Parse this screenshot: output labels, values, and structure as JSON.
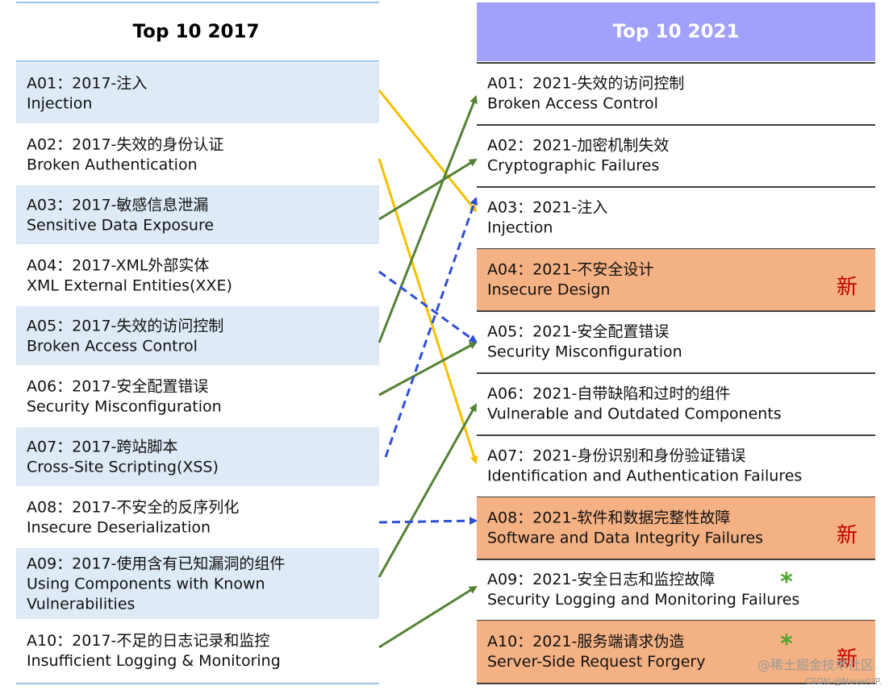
{
  "left": {
    "title": "Top 10 2017",
    "items": [
      {
        "lines": [
          "A01：2017-注入",
          "Injection"
        ]
      },
      {
        "lines": [
          "A02：2017-失效的身份认证",
          "Broken Authentication"
        ]
      },
      {
        "lines": [
          "A03：2017-敏感信息泄漏",
          "Sensitive Data Exposure"
        ]
      },
      {
        "lines": [
          "A04：2017-XML外部实体",
          "XML External Entities(XXE)"
        ]
      },
      {
        "lines": [
          "A05：2017-失效的访问控制",
          "Broken Access Control"
        ]
      },
      {
        "lines": [
          "A06：2017-安全配置错误",
          "Security Misconfiguration"
        ]
      },
      {
        "lines": [
          "A07：2017-跨站脚本",
          "Cross-Site Scripting(XSS)"
        ]
      },
      {
        "lines": [
          "A08：2017-不安全的反序列化",
          "Insecure Deserialization"
        ]
      },
      {
        "lines": [
          "A09：2017-使用含有已知漏洞的组件",
          "Using Components with Known",
          "Vulnerabilities"
        ]
      },
      {
        "lines": [
          "A10：2017-不足的日志记录和监控",
          "Insufficient Logging & Monitoring"
        ]
      }
    ]
  },
  "right": {
    "title": "Top 10 2021",
    "items": [
      {
        "lines": [
          "A01：2021-失效的访问控制",
          "Broken Access Control"
        ]
      },
      {
        "lines": [
          "A02：2021-加密机制失效",
          "Cryptographic Failures"
        ]
      },
      {
        "lines": [
          "A03：2021-注入",
          "Injection"
        ]
      },
      {
        "lines": [
          "A04：2021-不安全设计",
          "Insecure Design"
        ],
        "badge": "新"
      },
      {
        "lines": [
          "A05：2021-安全配置错误",
          "Security Misconfiguration"
        ]
      },
      {
        "lines": [
          "A06：2021-自带缺陷和过时的组件",
          "Vulnerable and Outdated Components"
        ]
      },
      {
        "lines": [
          "A07：2021-身份识别和身份验证错误",
          "Identification and Authentication Failures"
        ]
      },
      {
        "lines": [
          "A08：2021-软件和数据完整性故障",
          "Software and Data Integrity Failures"
        ],
        "badge": "新"
      },
      {
        "lines": [
          "A09：2021-安全日志和监控故障",
          "Security Logging and Monitoring Failures"
        ],
        "star": "*"
      },
      {
        "lines": [
          "A10：2021-服务端请求伪造",
          "Server-Side Request Forgery"
        ],
        "star": "*",
        "badge": "新"
      }
    ]
  },
  "watermark": {
    "site": "@稀土掘金技术社区",
    "author": "CSDN @NeverUP."
  }
}
